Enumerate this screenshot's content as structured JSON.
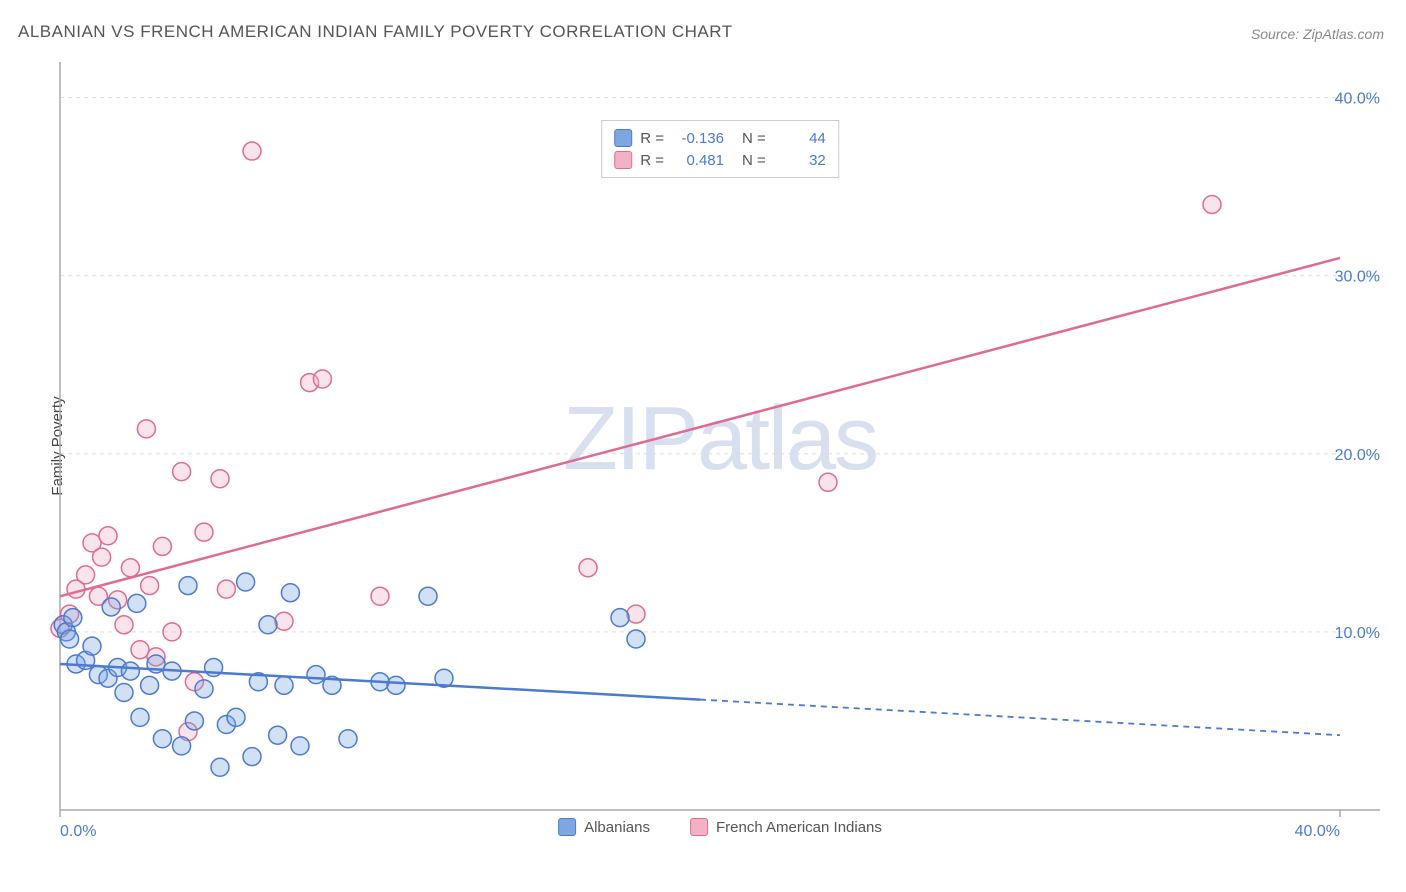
{
  "title": "ALBANIAN VS FRENCH AMERICAN INDIAN FAMILY POVERTY CORRELATION CHART",
  "source": "Source: ZipAtlas.com",
  "watermark": "ZIPatlas",
  "y_axis_label": "Family Poverty",
  "chart": {
    "type": "scatter",
    "xlim": [
      0,
      40
    ],
    "ylim": [
      0,
      42
    ],
    "x_ticks": [
      0,
      40
    ],
    "x_tick_labels": [
      "0.0%",
      "40.0%"
    ],
    "y_ticks": [
      10,
      20,
      30,
      40
    ],
    "y_tick_labels": [
      "10.0%",
      "20.0%",
      "30.0%",
      "40.0%"
    ],
    "grid_color": "#dddddd",
    "axis_color": "#aaaaaa",
    "background_color": "#ffffff",
    "marker_radius": 9,
    "marker_stroke_width": 1.5,
    "marker_fill_opacity": 0.35,
    "tick_label_color": "#4b7ad0",
    "tick_label_fontsize": 16
  },
  "series": {
    "albanians": {
      "label": "Albanians",
      "color_fill": "#7ea7e0",
      "color_stroke": "#4b7ad0",
      "R": "-0.136",
      "N": "44",
      "trend": {
        "x1": 0,
        "y1": 8.2,
        "x2": 20,
        "y2": 6.2,
        "dash_x2": 40,
        "dash_y2": 4.2
      },
      "points": [
        [
          0.1,
          10.4
        ],
        [
          0.2,
          10.0
        ],
        [
          0.3,
          9.6
        ],
        [
          0.4,
          10.8
        ],
        [
          0.5,
          8.2
        ],
        [
          0.8,
          8.4
        ],
        [
          1.0,
          9.2
        ],
        [
          1.2,
          7.6
        ],
        [
          1.5,
          7.4
        ],
        [
          1.6,
          11.4
        ],
        [
          1.8,
          8.0
        ],
        [
          2.0,
          6.6
        ],
        [
          2.2,
          7.8
        ],
        [
          2.4,
          11.6
        ],
        [
          2.5,
          5.2
        ],
        [
          2.8,
          7.0
        ],
        [
          3.0,
          8.2
        ],
        [
          3.2,
          4.0
        ],
        [
          3.5,
          7.8
        ],
        [
          3.8,
          3.6
        ],
        [
          4.0,
          12.6
        ],
        [
          4.2,
          5.0
        ],
        [
          4.5,
          6.8
        ],
        [
          4.8,
          8.0
        ],
        [
          5.0,
          2.4
        ],
        [
          5.2,
          4.8
        ],
        [
          5.5,
          5.2
        ],
        [
          5.8,
          12.8
        ],
        [
          6.0,
          3.0
        ],
        [
          6.2,
          7.2
        ],
        [
          6.5,
          10.4
        ],
        [
          6.8,
          4.2
        ],
        [
          7.0,
          7.0
        ],
        [
          7.2,
          12.2
        ],
        [
          7.5,
          3.6
        ],
        [
          8.0,
          7.6
        ],
        [
          8.5,
          7.0
        ],
        [
          9.0,
          4.0
        ],
        [
          10.0,
          7.2
        ],
        [
          10.5,
          7.0
        ],
        [
          11.5,
          12.0
        ],
        [
          12.0,
          7.4
        ],
        [
          18.0,
          9.6
        ],
        [
          17.5,
          10.8
        ]
      ]
    },
    "french": {
      "label": "French American Indians",
      "color_fill": "#f2b2c6",
      "color_stroke": "#e06b92",
      "R": "0.481",
      "N": "32",
      "trend": {
        "x1": 0,
        "y1": 12.0,
        "x2": 40,
        "y2": 31.0
      },
      "points": [
        [
          0.0,
          10.2
        ],
        [
          0.3,
          11.0
        ],
        [
          0.5,
          12.4
        ],
        [
          0.8,
          13.2
        ],
        [
          1.0,
          15.0
        ],
        [
          1.2,
          12.0
        ],
        [
          1.3,
          14.2
        ],
        [
          1.5,
          15.4
        ],
        [
          1.8,
          11.8
        ],
        [
          2.0,
          10.4
        ],
        [
          2.2,
          13.6
        ],
        [
          2.5,
          9.0
        ],
        [
          2.7,
          21.4
        ],
        [
          2.8,
          12.6
        ],
        [
          3.0,
          8.6
        ],
        [
          3.2,
          14.8
        ],
        [
          3.5,
          10.0
        ],
        [
          3.8,
          19.0
        ],
        [
          4.0,
          4.4
        ],
        [
          4.5,
          15.6
        ],
        [
          5.0,
          18.6
        ],
        [
          5.2,
          12.4
        ],
        [
          6.0,
          37.0
        ],
        [
          7.0,
          10.6
        ],
        [
          7.8,
          24.0
        ],
        [
          8.2,
          24.2
        ],
        [
          10.0,
          12.0
        ],
        [
          16.5,
          13.6
        ],
        [
          18.0,
          11.0
        ],
        [
          24.0,
          18.4
        ],
        [
          36.0,
          34.0
        ],
        [
          4.2,
          7.2
        ]
      ]
    }
  },
  "stats_legend_labels": {
    "R": "R =",
    "N": "N ="
  }
}
